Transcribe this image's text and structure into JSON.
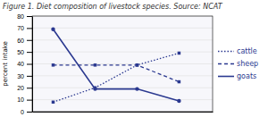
{
  "chart_data": {
    "type": "line",
    "title": "Figure 1. Diet composition of livestock species. Source: NCAT",
    "ylabel": "percent intake",
    "x": [
      1,
      2,
      3,
      4
    ],
    "xlim": [
      0.5,
      4.8
    ],
    "ylim": [
      0,
      80
    ],
    "yticks": [
      0,
      10,
      20,
      30,
      40,
      50,
      60,
      70,
      80
    ],
    "grid": true,
    "legend": "right",
    "tick_labels": "y",
    "series": [
      {
        "name": "cattle",
        "color": "#2b3990",
        "values": [
          8,
          20,
          39,
          49
        ],
        "line_style": "dotted",
        "marker": "square"
      },
      {
        "name": "sheep",
        "color": "#2b3990",
        "values": [
          39,
          39,
          39,
          25
        ],
        "line_style": "dashed",
        "marker": "square"
      },
      {
        "name": "goats",
        "color": "#2b3990",
        "values": [
          69,
          19,
          19,
          9
        ],
        "line_style": "solid",
        "marker": "circle"
      }
    ]
  }
}
